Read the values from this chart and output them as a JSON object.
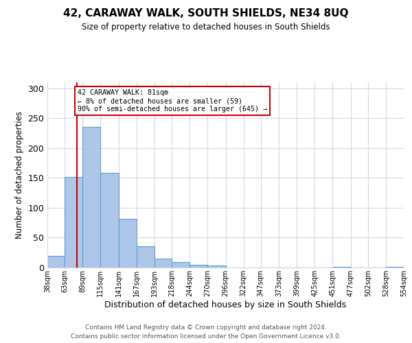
{
  "title": "42, CARAWAY WALK, SOUTH SHIELDS, NE34 8UQ",
  "subtitle": "Size of property relative to detached houses in South Shields",
  "xlabel": "Distribution of detached houses by size in South Shields",
  "ylabel": "Number of detached properties",
  "footer_line1": "Contains HM Land Registry data © Crown copyright and database right 2024.",
  "footer_line2": "Contains public sector information licensed under the Open Government Licence v3.0.",
  "bin_edges": [
    38,
    63,
    89,
    115,
    141,
    167,
    193,
    218,
    244,
    270,
    296,
    322,
    347,
    373,
    399,
    425,
    451,
    477,
    502,
    528,
    554
  ],
  "bin_counts": [
    20,
    152,
    235,
    158,
    81,
    36,
    15,
    9,
    5,
    4,
    0,
    0,
    0,
    0,
    0,
    0,
    1,
    0,
    0,
    1
  ],
  "bar_color": "#aec6e8",
  "bar_edge_color": "#5a9fd4",
  "property_line_x": 81,
  "property_line_color": "#cc0000",
  "annotation_text": "42 CARAWAY WALK: 81sqm\n← 8% of detached houses are smaller (59)\n90% of semi-detached houses are larger (645) →",
  "annotation_box_color": "#ffffff",
  "annotation_box_edge_color": "#cc0000",
  "ylim": [
    0,
    310
  ],
  "background_color": "#ffffff",
  "grid_color": "#d0d8e8",
  "tick_labels": [
    "38sqm",
    "63sqm",
    "89sqm",
    "115sqm",
    "141sqm",
    "167sqm",
    "193sqm",
    "218sqm",
    "244sqm",
    "270sqm",
    "296sqm",
    "322sqm",
    "347sqm",
    "373sqm",
    "399sqm",
    "425sqm",
    "451sqm",
    "477sqm",
    "502sqm",
    "528sqm",
    "554sqm"
  ],
  "yticks": [
    0,
    50,
    100,
    150,
    200,
    250,
    300
  ]
}
